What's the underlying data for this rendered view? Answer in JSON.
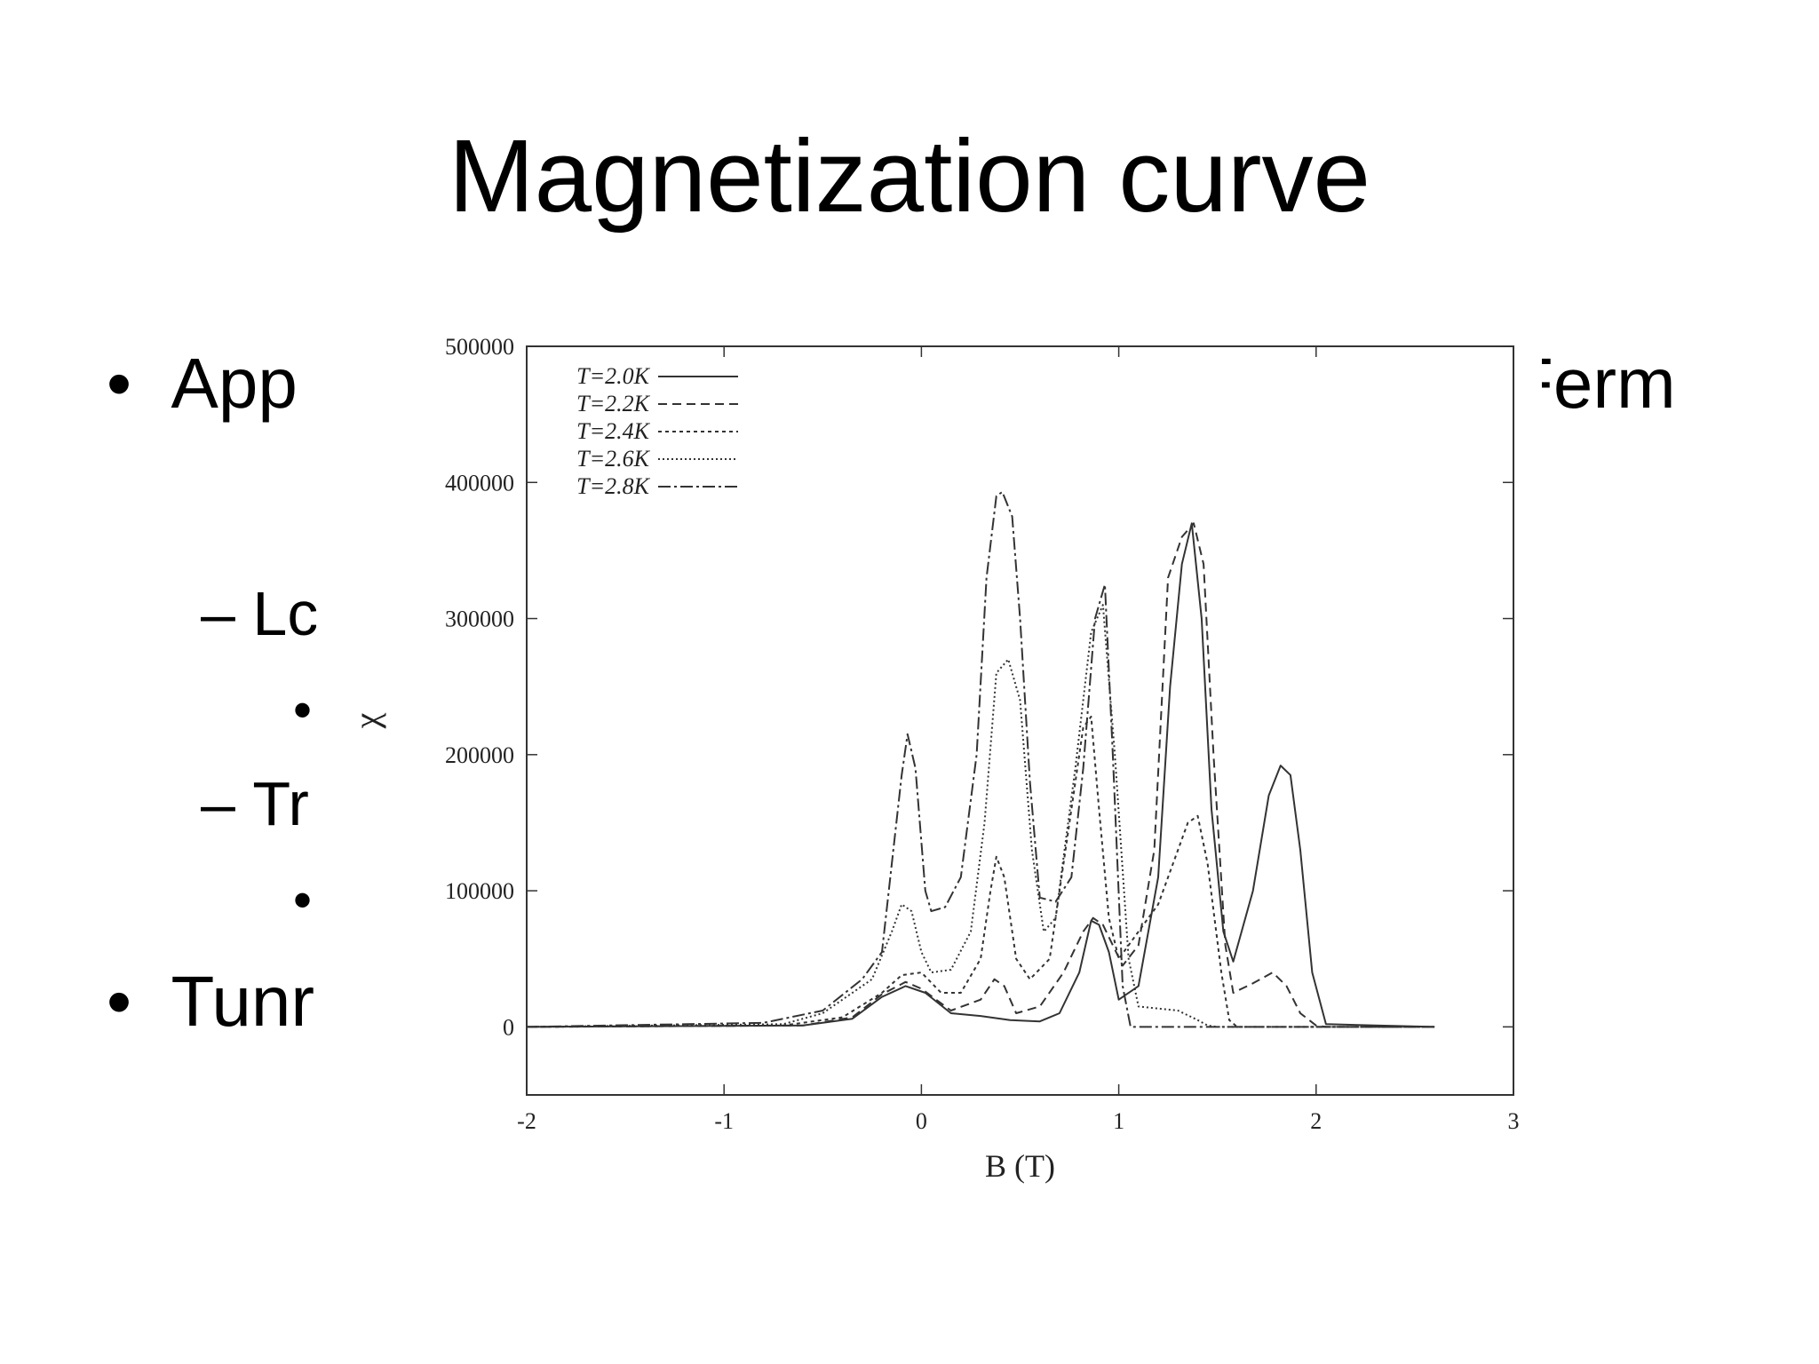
{
  "slide": {
    "title": "Magnetization curve",
    "bullets": [
      {
        "marker": "•",
        "text": "App",
        "level": 1
      },
      {
        "marker": "–",
        "text": "Lc",
        "level": 2
      },
      {
        "marker": "•",
        "text": "",
        "level": 3
      },
      {
        "marker": "–",
        "text": "Tr",
        "level": 2
      },
      {
        "marker": "•",
        "text": "",
        "level": 3
      },
      {
        "marker": "•",
        "text": "Tunr",
        "level": 1
      }
    ],
    "right_fragment": "Ferm"
  },
  "chart_data": {
    "type": "line",
    "title": "",
    "xlabel": "B (T)",
    "ylabel": "χ",
    "xlim": [
      -2,
      3
    ],
    "ylim": [
      -50000,
      500000
    ],
    "xticks": [
      -2,
      -1,
      0,
      1,
      2,
      3
    ],
    "yticks": [
      0,
      100000,
      200000,
      300000,
      400000,
      500000
    ],
    "grid": false,
    "legend_position": "top-left",
    "series": [
      {
        "name": "T=2.0K",
        "dash": "solid",
        "x": [
          -2,
          -0.6,
          -0.35,
          -0.2,
          -0.08,
          0.02,
          0.15,
          0.3,
          0.45,
          0.6,
          0.7,
          0.8,
          0.86,
          0.9,
          0.95,
          1.0,
          1.1,
          1.2,
          1.26,
          1.32,
          1.37,
          1.42,
          1.47,
          1.53,
          1.58,
          1.68,
          1.76,
          1.82,
          1.87,
          1.92,
          1.98,
          2.05,
          2.3,
          2.6
        ],
        "y": [
          0,
          1000,
          6000,
          22000,
          30000,
          25000,
          10000,
          8000,
          5000,
          4000,
          10000,
          40000,
          78000,
          75000,
          55000,
          20000,
          30000,
          110000,
          250000,
          340000,
          370000,
          300000,
          160000,
          70000,
          48000,
          100000,
          170000,
          192000,
          185000,
          130000,
          40000,
          2000,
          1000,
          0
        ]
      },
      {
        "name": "T=2.2K",
        "dash": "10,6",
        "x": [
          -2,
          -0.6,
          -0.35,
          -0.2,
          -0.08,
          0.0,
          0.15,
          0.3,
          0.37,
          0.42,
          0.48,
          0.6,
          0.72,
          0.82,
          0.87,
          0.92,
          0.97,
          1.02,
          1.1,
          1.18,
          1.25,
          1.32,
          1.38,
          1.43,
          1.48,
          1.54,
          1.58,
          1.68,
          1.78,
          1.85,
          1.92,
          2.0,
          2.05,
          2.6
        ],
        "y": [
          0,
          1000,
          7000,
          24000,
          33000,
          28000,
          12000,
          20000,
          35000,
          30000,
          10000,
          15000,
          40000,
          70000,
          80000,
          75000,
          60000,
          45000,
          60000,
          130000,
          330000,
          360000,
          370000,
          340000,
          200000,
          60000,
          25000,
          32000,
          40000,
          30000,
          10000,
          1000,
          0,
          0
        ]
      },
      {
        "name": "T=2.4K",
        "dash": "4,4",
        "x": [
          -2,
          -0.7,
          -0.4,
          -0.2,
          -0.1,
          0.0,
          0.1,
          0.2,
          0.3,
          0.35,
          0.38,
          0.42,
          0.48,
          0.55,
          0.65,
          0.75,
          0.82,
          0.86,
          0.9,
          0.95,
          1.0,
          1.1,
          1.2,
          1.3,
          1.35,
          1.4,
          1.45,
          1.52,
          1.56,
          1.6,
          2.6
        ],
        "y": [
          0,
          1000,
          7000,
          25000,
          38000,
          40000,
          25000,
          25000,
          50000,
          100000,
          125000,
          110000,
          50000,
          35000,
          50000,
          150000,
          220000,
          228000,
          160000,
          80000,
          50000,
          70000,
          90000,
          130000,
          150000,
          155000,
          120000,
          40000,
          5000,
          0,
          0
        ]
      },
      {
        "name": "T=2.6K",
        "dash": "2,3",
        "x": [
          -2,
          -0.7,
          -0.5,
          -0.25,
          -0.15,
          -0.1,
          -0.05,
          0.0,
          0.05,
          0.15,
          0.25,
          0.32,
          0.38,
          0.44,
          0.5,
          0.56,
          0.62,
          0.68,
          0.78,
          0.86,
          0.92,
          0.98,
          1.05,
          1.1,
          1.3,
          1.4,
          1.45,
          1.5,
          2.6
        ],
        "y": [
          0,
          2000,
          10000,
          35000,
          70000,
          90000,
          85000,
          55000,
          40000,
          42000,
          70000,
          150000,
          260000,
          270000,
          240000,
          130000,
          70000,
          80000,
          190000,
          290000,
          310000,
          200000,
          50000,
          15000,
          12000,
          5000,
          1000,
          0,
          0
        ]
      },
      {
        "name": "T=2.8K",
        "dash": "14,4,3,4",
        "x": [
          -2,
          -0.8,
          -0.5,
          -0.3,
          -0.2,
          -0.15,
          -0.1,
          -0.07,
          -0.03,
          0.02,
          0.05,
          0.12,
          0.2,
          0.28,
          0.33,
          0.38,
          0.41,
          0.46,
          0.5,
          0.55,
          0.6,
          0.68,
          0.76,
          0.82,
          0.88,
          0.93,
          0.97,
          1.02,
          1.06,
          2.6
        ],
        "y": [
          0,
          3000,
          12000,
          35000,
          55000,
          120000,
          185000,
          215000,
          190000,
          100000,
          85000,
          88000,
          110000,
          200000,
          330000,
          390000,
          393000,
          375000,
          300000,
          180000,
          95000,
          92000,
          110000,
          190000,
          300000,
          325000,
          200000,
          30000,
          0,
          0
        ]
      }
    ]
  }
}
